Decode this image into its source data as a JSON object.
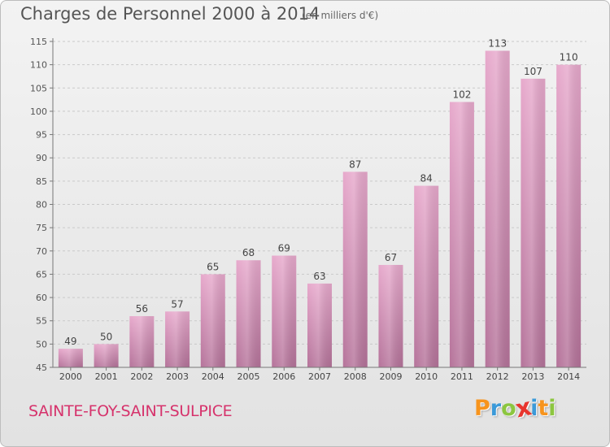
{
  "header": {
    "title": "Charges de Personnel 2000 à 2014",
    "subtitle": "(en milliers d'€)"
  },
  "commune": "SAINTE-FOY-SAINT-SULPICE",
  "brand": {
    "name": "Proxiti",
    "letter_colors": [
      "#f7941d",
      "#3b9ad9",
      "#8cc63f",
      "#e8352e",
      "#3b9ad9",
      "#f7941d",
      "#8cc63f"
    ]
  },
  "colors": {
    "bar_top": "#e7a9cc",
    "bar_bottom": "#b5739a",
    "commune_text": "#d6336c"
  },
  "chart_data": {
    "type": "bar",
    "categories": [
      "2000",
      "2001",
      "2002",
      "2003",
      "2004",
      "2005",
      "2006",
      "2007",
      "2008",
      "2009",
      "2010",
      "2011",
      "2012",
      "2013",
      "2014"
    ],
    "values": [
      49,
      50,
      56,
      57,
      65,
      68,
      69,
      63,
      87,
      67,
      84,
      102,
      113,
      107,
      110
    ],
    "title": "Charges de Personnel 2000 à 2014",
    "subtitle": "(en milliers d'€)",
    "xlabel": "",
    "ylabel": "",
    "ylim": [
      45,
      115
    ],
    "yticks": [
      45,
      50,
      55,
      60,
      65,
      70,
      75,
      80,
      85,
      90,
      95,
      100,
      105,
      110,
      115
    ],
    "grid": "horizontal dashed",
    "legend": "none",
    "data_labels": true
  }
}
